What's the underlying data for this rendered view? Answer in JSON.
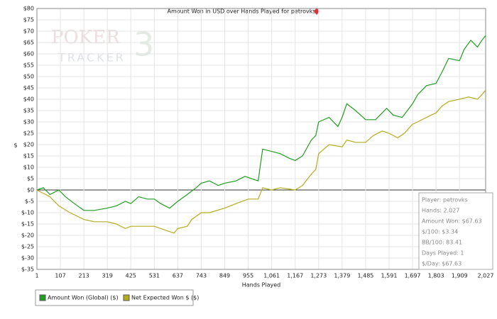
{
  "chart_data": {
    "type": "line",
    "title": "Amount Won in USD over Hands Played for petrovks",
    "x_label": "Hands Played",
    "y_label": "$",
    "logo": [
      "POKER",
      "TRACKER",
      "3"
    ],
    "stats": [
      "Player: petrovks",
      "Hands: 2,027",
      "Amount Won: $67.63",
      "$/100: $3.34",
      "BB/100: 83.41",
      "Days Played: 1",
      "$/Day: $67.63"
    ],
    "grid": true,
    "legend": "bottom-left",
    "xlim": [
      1,
      2027
    ],
    "ylim": [
      -35,
      80
    ],
    "xticks": [
      1,
      107,
      213,
      319,
      425,
      531,
      637,
      743,
      849,
      955,
      {
        "value": 1061,
        "label": "1,061"
      },
      {
        "value": 1167,
        "label": "1,167"
      },
      {
        "value": 1273,
        "label": "1,273"
      },
      {
        "value": 1379,
        "label": "1,379"
      },
      {
        "value": 1485,
        "label": "1,485"
      },
      {
        "value": 1591,
        "label": "1,591"
      },
      {
        "value": 1697,
        "label": "1,697"
      },
      {
        "value": 1803,
        "label": "1,803"
      },
      {
        "value": 1909,
        "label": "1,909"
      },
      {
        "value": 2027,
        "label": "2,027"
      }
    ],
    "yticks": [
      {
        "value": 80,
        "label": "$80"
      },
      {
        "value": 75,
        "label": "$75"
      },
      {
        "value": 70,
        "label": "$70"
      },
      {
        "value": 65,
        "label": "$65"
      },
      {
        "value": 60,
        "label": "$60"
      },
      {
        "value": 55,
        "label": "$55"
      },
      {
        "value": 50,
        "label": "$50"
      },
      {
        "value": 45,
        "label": "$45"
      },
      {
        "value": 40,
        "label": "$40"
      },
      {
        "value": 35,
        "label": "$35"
      },
      {
        "value": 30,
        "label": "$30"
      },
      {
        "value": 25,
        "label": "$25"
      },
      {
        "value": 20,
        "label": "$20"
      },
      {
        "value": 15,
        "label": "$15"
      },
      {
        "value": 10,
        "label": "$10"
      },
      {
        "value": 5,
        "label": "$5"
      },
      {
        "value": 0,
        "label": "$0"
      },
      {
        "value": -5,
        "label": "$-5"
      },
      {
        "value": -10,
        "label": "$-10"
      },
      {
        "value": -15,
        "label": "$-15"
      },
      {
        "value": -20,
        "label": "$-20"
      },
      {
        "value": -25,
        "label": "$-25"
      },
      {
        "value": -30,
        "label": "$-30"
      },
      {
        "value": -35,
        "label": "$-35"
      }
    ],
    "series": [
      {
        "name": "Amount Won (Global) ($)",
        "color": "#1f9e1f",
        "x": [
          1,
          30,
          60,
          100,
          130,
          170,
          213,
          260,
          319,
          360,
          400,
          425,
          460,
          500,
          531,
          560,
          600,
          637,
          680,
          720,
          743,
          780,
          820,
          849,
          900,
          940,
          1000,
          1020,
          1061,
          1100,
          1140,
          1167,
          1200,
          1240,
          1260,
          1273,
          1320,
          1360,
          1379,
          1400,
          1440,
          1485,
          1530,
          1580,
          1610,
          1650,
          1697,
          1720,
          1760,
          1803,
          1830,
          1860,
          1909,
          1930,
          1960,
          1990,
          2010,
          2027
        ],
        "values": [
          0,
          1,
          -2,
          0,
          -3,
          -6,
          -9,
          -9,
          -8,
          -7,
          -5,
          -6,
          -3,
          -4,
          -4,
          -6,
          -8,
          -5,
          -2,
          1,
          3,
          4,
          2,
          3,
          4,
          6,
          4,
          18,
          17,
          16,
          14,
          13,
          15,
          22,
          24,
          30,
          32,
          28,
          32,
          38,
          35,
          31,
          31,
          36,
          33,
          32,
          38,
          42,
          46,
          47,
          52,
          58,
          57,
          62,
          66,
          63,
          66,
          68
        ]
      },
      {
        "name": "Net Expected Won $ ($)",
        "color": "#b3ad1c",
        "x": [
          1,
          60,
          100,
          150,
          213,
          260,
          319,
          360,
          400,
          425,
          460,
          531,
          560,
          620,
          637,
          680,
          700,
          743,
          780,
          849,
          900,
          955,
          1000,
          1020,
          1061,
          1100,
          1167,
          1200,
          1240,
          1260,
          1273,
          1320,
          1379,
          1400,
          1440,
          1485,
          1520,
          1560,
          1591,
          1630,
          1660,
          1697,
          1720,
          1760,
          1803,
          1830,
          1860,
          1909,
          1950,
          1990,
          2010,
          2027
        ],
        "values": [
          0,
          -3,
          -7,
          -10,
          -13,
          -14,
          -14,
          -15,
          -17,
          -16,
          -16,
          -16,
          -17,
          -19,
          -17,
          -16,
          -13,
          -10,
          -10,
          -8,
          -6,
          -4,
          -4,
          1,
          0,
          1,
          0,
          2,
          7,
          9,
          16,
          20,
          19,
          22,
          21,
          21,
          24,
          26,
          25,
          23,
          25,
          29,
          30,
          32,
          34,
          37,
          39,
          40,
          41,
          40,
          42,
          44
        ]
      }
    ]
  }
}
